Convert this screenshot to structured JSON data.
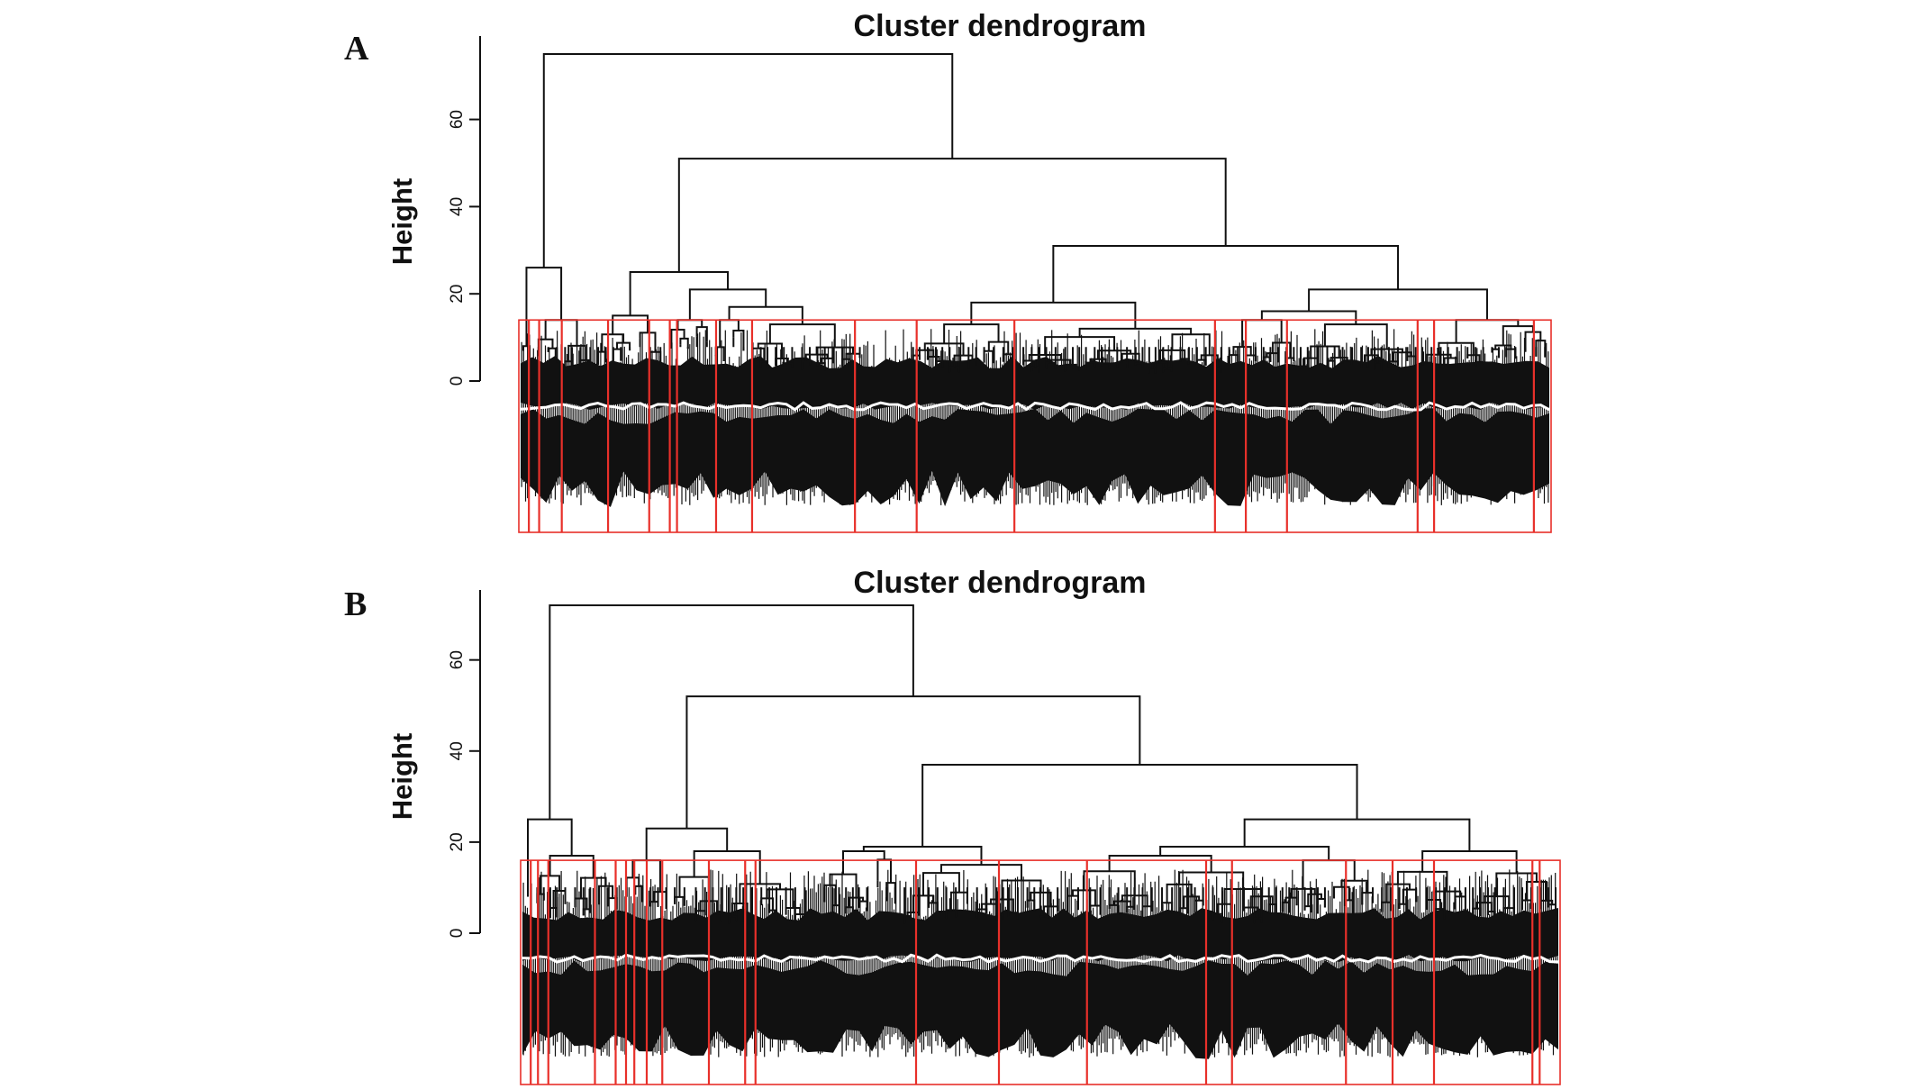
{
  "figure": {
    "panels": [
      {
        "panel_label": "A",
        "title": "Cluster dendrogram",
        "ylabel": "Height"
      },
      {
        "panel_label": "B",
        "title": "Cluster dendrogram",
        "ylabel": "Height"
      }
    ]
  },
  "chart_data": [
    {
      "type": "dendrogram",
      "title": "Cluster dendrogram",
      "ylabel": "Height",
      "ylim": [
        0,
        75
      ],
      "yticks": [
        0,
        20,
        40,
        60
      ],
      "cut_height": 14,
      "merges": [
        {
          "id": "root",
          "height": 75
        },
        {
          "id": "left_a",
          "height": 26
        },
        {
          "id": "right_a",
          "height": 51
        },
        {
          "id": "mid_left",
          "height": 25
        },
        {
          "id": "mid_right",
          "height": 31
        },
        {
          "id": "sub_l1",
          "height": 21
        },
        {
          "id": "sub_l2",
          "height": 17
        },
        {
          "id": "sub_r1",
          "height": 18
        },
        {
          "id": "sub_r2",
          "height": 21
        },
        {
          "id": "sub_r3",
          "height": 16
        }
      ],
      "modules_count": 22,
      "color_cut": "#e8302a"
    },
    {
      "type": "dendrogram",
      "title": "Cluster dendrogram",
      "ylabel": "Height",
      "ylim": [
        0,
        72
      ],
      "yticks": [
        0,
        20,
        40,
        60
      ],
      "cut_height": 16,
      "merges": [
        {
          "id": "root",
          "height": 72
        },
        {
          "id": "left_b",
          "height": 25
        },
        {
          "id": "right_b",
          "height": 52
        },
        {
          "id": "mid_left",
          "height": 23
        },
        {
          "id": "mid_right",
          "height": 37
        },
        {
          "id": "sub_l1",
          "height": 19
        },
        {
          "id": "sub_r1",
          "height": 25
        },
        {
          "id": "sub_r2",
          "height": 19
        },
        {
          "id": "sub_r3",
          "height": 24
        }
      ],
      "modules_count": 24,
      "color_cut": "#e8302a"
    }
  ]
}
